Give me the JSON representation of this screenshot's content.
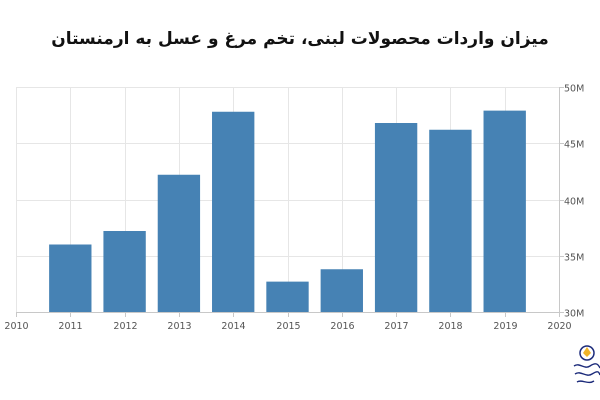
{
  "chart_data": {
    "type": "bar",
    "title": "میزان واردات محصولات لبنی، تخم مرغ و عسل به ارمنستان",
    "x": [
      2011,
      2012,
      2013,
      2014,
      2015,
      2016,
      2017,
      2018,
      2019
    ],
    "values": [
      36,
      37.2,
      42.2,
      47.8,
      32.7,
      33.8,
      46.8,
      46.2,
      47.9
    ],
    "xlim": [
      2010,
      2020
    ],
    "ylim": [
      30,
      50
    ],
    "x_ticks": [
      "2010",
      "2011",
      "2012",
      "2013",
      "2014",
      "2015",
      "2016",
      "2017",
      "2018",
      "2019",
      "2020"
    ],
    "y_ticks": [
      {
        "value": 30,
        "label": "30M"
      },
      {
        "value": 35,
        "label": "35M"
      },
      {
        "value": 40,
        "label": "40M"
      },
      {
        "value": 45,
        "label": "45M"
      },
      {
        "value": 50,
        "label": "50M"
      }
    ],
    "y_axis_side": "right",
    "grid": true,
    "bar_color": "#4682b4",
    "grid_color": "#e6e6e6",
    "axis_color": "#c8c8c8",
    "label_color": "#555555"
  },
  "watermark": {
    "type": "logo",
    "color": "#1b2a7a",
    "accent_color": "#f0b429"
  }
}
